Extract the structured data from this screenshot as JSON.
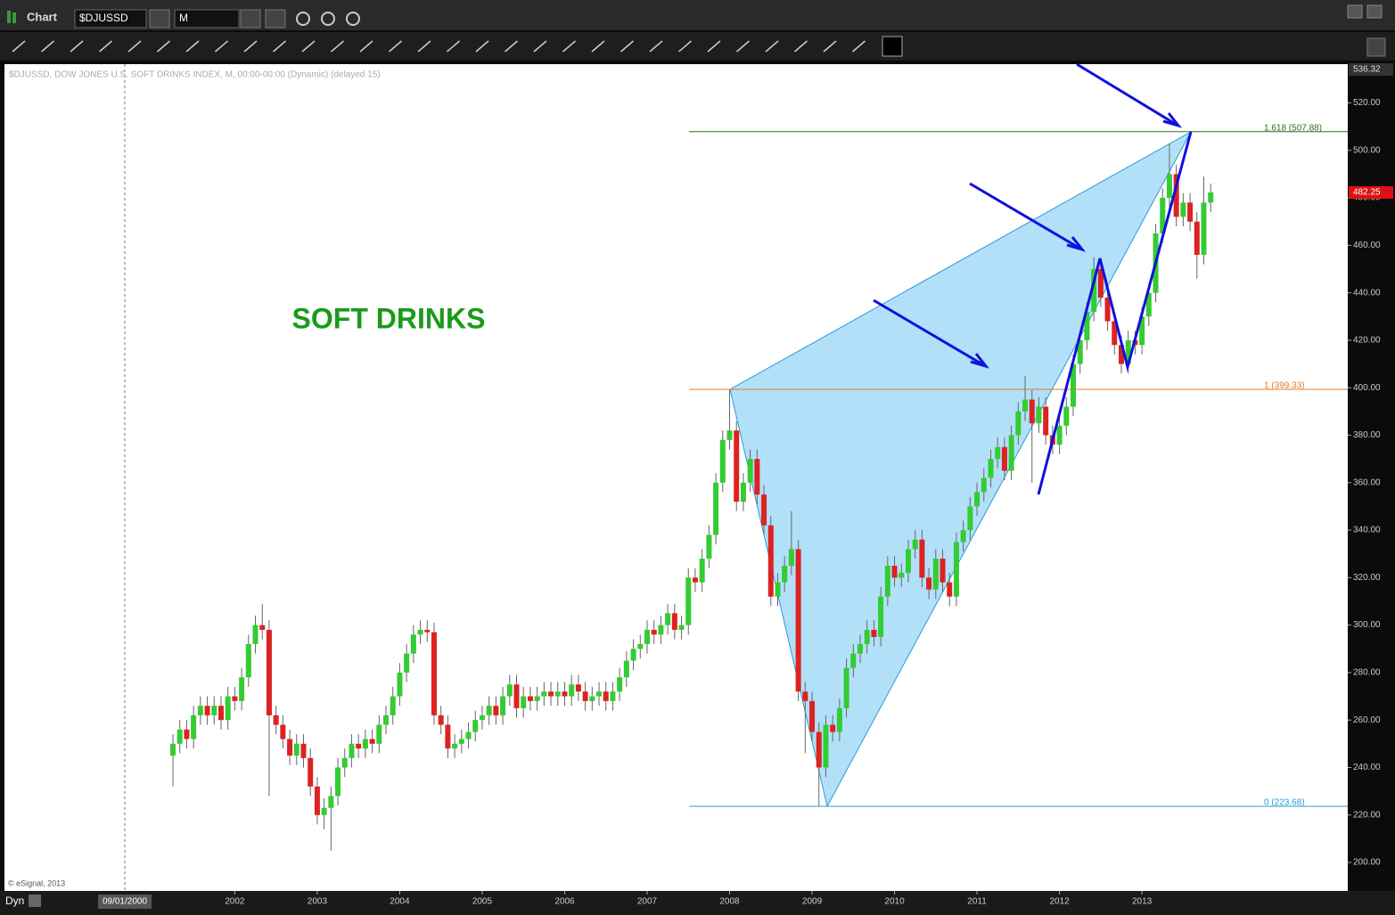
{
  "window": {
    "title": "Chart",
    "symbol": "$DJUSSD",
    "interval": "M"
  },
  "chart_data": {
    "type": "candlestick",
    "info": "$DJUSSD, DOW JONES U.S. SOFT DRINKS INDEX, M, 00:00-00:00 (Dynamic) (delayed 15)",
    "annotation": "SOFT DRINKS",
    "copyright": "© eSignal, 2013",
    "start_label": "09/01/2000",
    "mode_label": "Dyn",
    "colors": {
      "up": "#33cc33",
      "down": "#dd2222"
    },
    "categories": [
      null,
      null,
      null,
      null,
      null,
      null,
      null,
      null,
      null,
      "2002",
      null,
      null,
      null,
      null,
      null,
      null,
      null,
      null,
      null,
      null,
      null,
      "2003",
      null,
      null,
      null,
      null,
      null,
      null,
      null,
      null,
      null,
      null,
      null,
      "2004",
      null,
      null,
      null,
      null,
      null,
      null,
      null,
      null,
      null,
      null,
      null,
      "2005",
      null,
      null,
      null,
      null,
      null,
      null,
      null,
      null,
      null,
      null,
      null,
      "2006",
      null,
      null,
      null,
      null,
      null,
      null,
      null,
      null,
      null,
      null,
      null,
      "2007",
      null,
      null,
      null,
      null,
      null,
      null,
      null,
      null,
      null,
      null,
      null,
      "2008",
      null,
      null,
      null,
      null,
      null,
      null,
      null,
      null,
      null,
      null,
      null,
      "2009",
      null,
      null,
      null,
      null,
      null,
      null,
      null,
      null,
      null,
      null,
      null,
      "2010",
      null,
      null,
      null,
      null,
      null,
      null,
      null,
      null,
      null,
      null,
      null,
      "2011",
      null,
      null,
      null,
      null,
      null,
      null,
      null,
      null,
      null,
      null,
      null,
      "2012",
      null,
      null,
      null,
      null,
      null,
      null,
      null,
      null,
      null,
      null,
      null,
      "2013",
      null,
      null,
      null,
      null,
      null,
      null,
      null,
      null,
      null,
      null
    ],
    "open": [
      245,
      250,
      256,
      252,
      262,
      266,
      262,
      266,
      260,
      270,
      268,
      278,
      292,
      300,
      298,
      262,
      258,
      252,
      245,
      250,
      244,
      232,
      220,
      223,
      228,
      240,
      244,
      250,
      248,
      252,
      250,
      258,
      262,
      270,
      280,
      288,
      296,
      298,
      297,
      262,
      258,
      248,
      250,
      252,
      255,
      260,
      262,
      266,
      262,
      270,
      275,
      265,
      270,
      268,
      270,
      272,
      270,
      272,
      270,
      275,
      272,
      268,
      270,
      272,
      268,
      272,
      278,
      285,
      290,
      292,
      298,
      296,
      300,
      305,
      298,
      300,
      320,
      318,
      328,
      338,
      360,
      378,
      382,
      352,
      360,
      370,
      355,
      342,
      312,
      318,
      325,
      332,
      272,
      268,
      255,
      240,
      258,
      255,
      265,
      282,
      288,
      292,
      298,
      295,
      312,
      325,
      320,
      322,
      332,
      336,
      320,
      315,
      328,
      318,
      312,
      335,
      340,
      350,
      356,
      362,
      370,
      375,
      365,
      380,
      390,
      395,
      385,
      392,
      380,
      376,
      384,
      392,
      410,
      420,
      432,
      450,
      438,
      428,
      418,
      410,
      420,
      418,
      430,
      440,
      465,
      480,
      490,
      472,
      478,
      470,
      456,
      478
    ],
    "high": [
      254,
      260,
      260,
      266,
      270,
      270,
      270,
      270,
      274,
      274,
      282,
      296,
      304,
      309,
      302,
      266,
      262,
      256,
      254,
      254,
      248,
      236,
      227,
      232,
      244,
      248,
      254,
      254,
      256,
      256,
      262,
      266,
      274,
      284,
      292,
      300,
      302,
      302,
      301,
      266,
      262,
      254,
      256,
      259,
      264,
      266,
      270,
      270,
      274,
      279,
      279,
      274,
      274,
      274,
      276,
      276,
      276,
      276,
      279,
      279,
      276,
      274,
      276,
      276,
      276,
      282,
      289,
      294,
      296,
      302,
      302,
      304,
      309,
      309,
      304,
      324,
      324,
      332,
      342,
      364,
      382,
      399,
      386,
      364,
      374,
      374,
      359,
      346,
      322,
      329,
      348,
      336,
      276,
      272,
      259,
      262,
      262,
      269,
      286,
      292,
      296,
      302,
      302,
      316,
      329,
      329,
      326,
      336,
      340,
      340,
      324,
      332,
      332,
      322,
      339,
      344,
      354,
      360,
      366,
      374,
      379,
      379,
      384,
      394,
      405,
      399,
      396,
      396,
      384,
      388,
      396,
      414,
      424,
      436,
      455,
      454,
      442,
      432,
      422,
      424,
      424,
      434,
      444,
      469,
      484,
      503,
      494,
      482,
      482,
      474,
      489,
      486
    ],
    "low": [
      232,
      246,
      248,
      248,
      258,
      258,
      258,
      256,
      256,
      264,
      264,
      274,
      288,
      294,
      228,
      254,
      248,
      241,
      241,
      240,
      228,
      216,
      214,
      205,
      224,
      236,
      240,
      244,
      244,
      246,
      246,
      254,
      258,
      266,
      276,
      284,
      292,
      293,
      258,
      254,
      244,
      244,
      246,
      248,
      251,
      256,
      258,
      258,
      258,
      266,
      261,
      261,
      264,
      264,
      266,
      266,
      266,
      266,
      266,
      268,
      264,
      264,
      266,
      264,
      264,
      268,
      274,
      281,
      286,
      288,
      292,
      292,
      296,
      294,
      294,
      296,
      314,
      314,
      324,
      334,
      356,
      374,
      348,
      348,
      356,
      351,
      338,
      308,
      308,
      314,
      321,
      268,
      246,
      251,
      223.68,
      236,
      251,
      251,
      261,
      278,
      284,
      288,
      291,
      291,
      308,
      316,
      316,
      318,
      328,
      316,
      311,
      311,
      314,
      308,
      308,
      331,
      336,
      346,
      352,
      358,
      366,
      361,
      361,
      376,
      386,
      360,
      381,
      376,
      372,
      372,
      380,
      388,
      406,
      416,
      428,
      434,
      424,
      414,
      406,
      406,
      414,
      414,
      426,
      436,
      461,
      476,
      468,
      468,
      466,
      446,
      452,
      474
    ],
    "close": [
      250,
      256,
      252,
      262,
      266,
      262,
      266,
      260,
      270,
      268,
      278,
      292,
      300,
      298,
      262,
      258,
      252,
      245,
      250,
      244,
      232,
      220,
      223,
      228,
      240,
      244,
      250,
      248,
      252,
      250,
      258,
      262,
      270,
      280,
      288,
      296,
      298,
      297,
      262,
      258,
      248,
      250,
      252,
      255,
      260,
      262,
      266,
      262,
      270,
      275,
      265,
      270,
      268,
      270,
      272,
      270,
      272,
      270,
      275,
      272,
      268,
      270,
      272,
      268,
      272,
      278,
      285,
      290,
      292,
      298,
      296,
      300,
      305,
      298,
      300,
      320,
      318,
      328,
      338,
      360,
      378,
      382,
      352,
      360,
      370,
      355,
      342,
      312,
      318,
      325,
      332,
      272,
      268,
      255,
      240,
      258,
      255,
      265,
      282,
      288,
      292,
      298,
      295,
      312,
      325,
      320,
      322,
      332,
      336,
      320,
      315,
      328,
      318,
      312,
      335,
      340,
      350,
      356,
      362,
      370,
      375,
      365,
      380,
      390,
      395,
      385,
      392,
      380,
      376,
      384,
      392,
      410,
      420,
      432,
      450,
      438,
      428,
      418,
      410,
      420,
      418,
      430,
      440,
      465,
      480,
      490,
      472,
      478,
      470,
      456,
      478,
      482.25
    ],
    "fib_levels": [
      {
        "label": "1.618 (507.88)",
        "value": 507.88,
        "color": "#2e6b1f"
      },
      {
        "label": "1 (399.33)",
        "value": 399.33,
        "color": "#e87a20"
      },
      {
        "label": "0 (223.68)",
        "value": 223.68,
        "color": "#2a9ad6"
      }
    ],
    "ylim": [
      188,
      536.32
    ],
    "yticks": [
      {
        "value": 200,
        "label": "200.00"
      },
      {
        "value": 220,
        "label": "220.00"
      },
      {
        "value": 240,
        "label": "240.00"
      },
      {
        "value": 260,
        "label": "260.00"
      },
      {
        "value": 280,
        "label": "280.00"
      },
      {
        "value": 300,
        "label": "300.00"
      },
      {
        "value": 320,
        "label": "320.00"
      },
      {
        "value": 340,
        "label": "340.00"
      },
      {
        "value": 360,
        "label": "360.00"
      },
      {
        "value": 380,
        "label": "380.00"
      },
      {
        "value": 400,
        "label": "400.00"
      },
      {
        "value": 420,
        "label": "420.00"
      },
      {
        "value": 440,
        "label": "440.00"
      },
      {
        "value": 460,
        "label": "460.00"
      },
      {
        "value": 480,
        "label": "480.00"
      },
      {
        "value": 500,
        "label": "500.00"
      },
      {
        "value": 520,
        "label": "520.00"
      }
    ]
  }
}
